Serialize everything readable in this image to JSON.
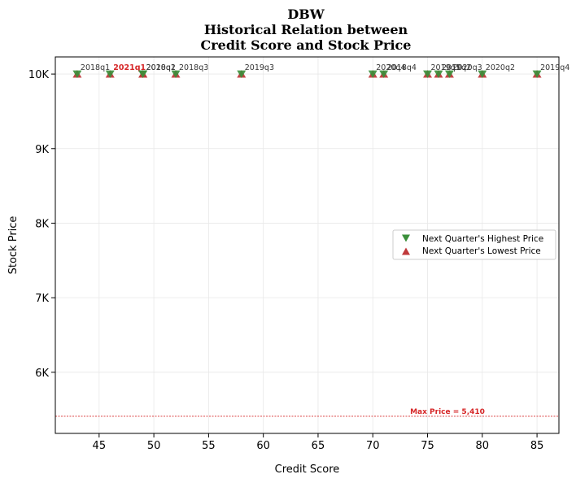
{
  "chart_data": {
    "type": "scatter",
    "title_lines": [
      "DBW",
      "Historical Relation between",
      "Credit Score and Stock Price"
    ],
    "xlabel": "Credit Score",
    "ylabel": "Stock Price",
    "xlim": [
      41,
      87
    ],
    "ylim": [
      5180,
      10230
    ],
    "x_ticks": [
      45,
      50,
      55,
      60,
      65,
      70,
      75,
      80,
      85
    ],
    "x_tick_labels": [
      "45",
      "50",
      "55",
      "60",
      "65",
      "70",
      "75",
      "80",
      "85"
    ],
    "y_ticks": [
      6000,
      7000,
      8000,
      9000,
      10000
    ],
    "y_tick_labels": [
      "6K",
      "7K",
      "8K",
      "9K",
      "10K"
    ],
    "grid": true,
    "legend_position": "center-right",
    "series": [
      {
        "name": "Next Quarter's Highest Price",
        "marker": "triangle-down",
        "color": "#3a8f3a"
      },
      {
        "name": "Next Quarter's Lowest Price",
        "marker": "triangle-up",
        "color": "#c0393b"
      }
    ],
    "points": [
      {
        "label": "2018q1",
        "x": 43,
        "high": 10000,
        "low": 10000,
        "highlight": false
      },
      {
        "label": "2021q1",
        "x": 46,
        "high": 10000,
        "low": 10000,
        "highlight": true
      },
      {
        "label": "2018q2",
        "x": 49,
        "high": 10000,
        "low": 10000,
        "highlight": false
      },
      {
        "label": "2020q1",
        "x": 49,
        "high": 10000,
        "low": 10000,
        "highlight": false
      },
      {
        "label": "2018q3",
        "x": 52,
        "high": 10000,
        "low": 10000,
        "highlight": false
      },
      {
        "label": "2019q3",
        "x": 58,
        "high": 10000,
        "low": 10000,
        "highlight": false
      },
      {
        "label": "2020q4",
        "x": 70,
        "high": 10000,
        "low": 10000,
        "highlight": false
      },
      {
        "label": "2018q4",
        "x": 71,
        "high": 10000,
        "low": 10000,
        "highlight": false
      },
      {
        "label": "2019q1",
        "x": 75,
        "high": 10000,
        "low": 10000,
        "highlight": false
      },
      {
        "label": "2019q2",
        "x": 76,
        "high": 10000,
        "low": 10000,
        "highlight": false
      },
      {
        "label": "2020q3",
        "x": 77,
        "high": 10000,
        "low": 10000,
        "highlight": false
      },
      {
        "label": "2020q2",
        "x": 80,
        "high": 10000,
        "low": 10000,
        "highlight": false
      },
      {
        "label": "2019q4",
        "x": 85,
        "high": 10000,
        "low": 10000,
        "highlight": false
      }
    ],
    "reference_line": {
      "value": 5410,
      "label": "Max Price = 5,410",
      "color": "#d62728"
    }
  }
}
